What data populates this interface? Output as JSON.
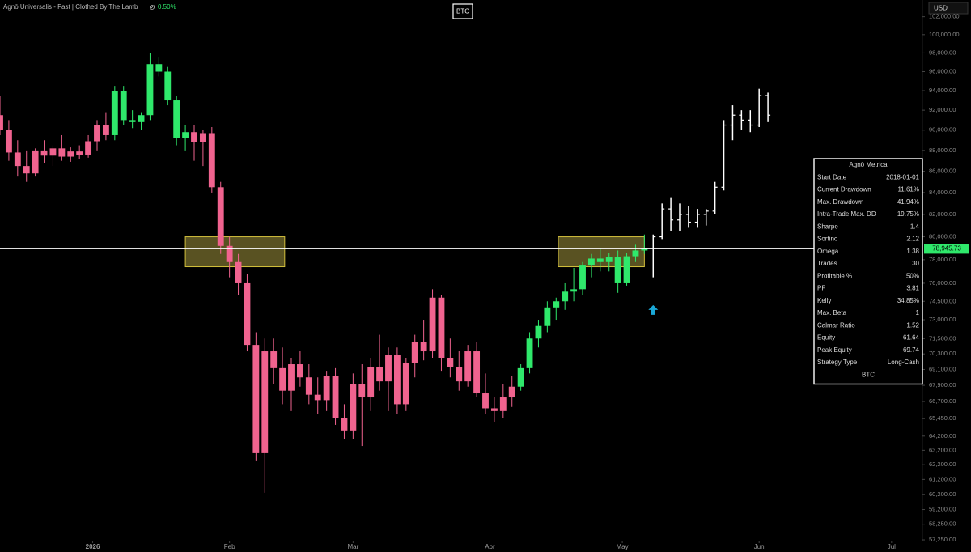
{
  "chart_data": {
    "type": "candlestick",
    "title": "Agnō Universalis - Fast | Clothed By The Lamb",
    "title_change": "0.50%",
    "symbol": "BTC",
    "currency": "USD",
    "log_scale": true,
    "xlim": [
      -21,
      188
    ],
    "xticks": [
      {
        "value": 0,
        "label": "2026"
      },
      {
        "value": 31,
        "label": "Feb"
      },
      {
        "value": 59,
        "label": "Mar"
      },
      {
        "value": 90,
        "label": "Apr"
      },
      {
        "value": 120,
        "label": "May"
      },
      {
        "value": 151,
        "label": "Jun"
      },
      {
        "value": 181,
        "label": "Jul"
      }
    ],
    "ylim": [
      57200,
      103900
    ],
    "yticks": [
      {
        "value": 102000,
        "label": "102,000.00"
      },
      {
        "value": 100000,
        "label": "100,000.00"
      },
      {
        "value": 98000,
        "label": "98,000.00"
      },
      {
        "value": 96000,
        "label": "96,000.00"
      },
      {
        "value": 94000,
        "label": "94,000.00"
      },
      {
        "value": 92000,
        "label": "92,000.00"
      },
      {
        "value": 90000,
        "label": "90,000.00"
      },
      {
        "value": 88000,
        "label": "88,000.00"
      },
      {
        "value": 86000,
        "label": "86,000.00"
      },
      {
        "value": 84000,
        "label": "84,000.00"
      },
      {
        "value": 82000,
        "label": "82,000.00"
      },
      {
        "value": 80000,
        "label": "80,000.00"
      },
      {
        "value": 78000,
        "label": "78,000.00"
      },
      {
        "value": 76000,
        "label": "76,000.00"
      },
      {
        "value": 74500,
        "label": "74,500.00"
      },
      {
        "value": 73000,
        "label": "73,000.00"
      },
      {
        "value": 71500,
        "label": "71,500.00"
      },
      {
        "value": 70300,
        "label": "70,300.00"
      },
      {
        "value": 69100,
        "label": "69,100.00"
      },
      {
        "value": 67900,
        "label": "67,900.00"
      },
      {
        "value": 66700,
        "label": "66,700.00"
      },
      {
        "value": 65450,
        "label": "65,450.00"
      },
      {
        "value": 64200,
        "label": "64,200.00"
      },
      {
        "value": 63200,
        "label": "63,200.00"
      },
      {
        "value": 62200,
        "label": "62,200.00"
      },
      {
        "value": 61200,
        "label": "61,200.00"
      },
      {
        "value": 60200,
        "label": "60,200.00"
      },
      {
        "value": 59200,
        "label": "59,200.00"
      },
      {
        "value": 58250,
        "label": "58,250.00"
      },
      {
        "value": 57250,
        "label": "57,250.00"
      }
    ],
    "last_price": {
      "value": 78945.73,
      "label": "78,945.73"
    },
    "series": [
      {
        "color": "#f0638f",
        "style": "candle",
        "x": [
          -21,
          -19,
          -17,
          -15,
          -13,
          -11,
          -9,
          -7,
          -5,
          -3,
          -1,
          1,
          3
        ],
        "open": [
          91500,
          90000,
          87800,
          86500,
          85800,
          88000,
          87500,
          88200,
          87400,
          87900,
          87600,
          88900,
          90500
        ],
        "high": [
          93500,
          91000,
          89000,
          88000,
          88200,
          89000,
          88500,
          89500,
          88300,
          88500,
          89500,
          91000,
          91800
        ],
        "low": [
          89500,
          87000,
          85500,
          85000,
          85500,
          86800,
          86500,
          87000,
          86900,
          87200,
          87300,
          88000,
          89000
        ],
        "close": [
          90000,
          87800,
          86500,
          85800,
          88000,
          87500,
          88200,
          87400,
          87900,
          87600,
          88900,
          90500,
          89500
        ]
      },
      {
        "color": "#2fe86b",
        "style": "candle",
        "x": [
          5,
          7,
          9,
          11,
          13,
          15,
          17,
          19,
          21
        ],
        "open": [
          89500,
          94000,
          91000,
          90800,
          91500,
          96800,
          96000,
          93000,
          89200
        ],
        "high": [
          94500,
          94500,
          92000,
          91800,
          98000,
          97500,
          96500,
          93500,
          90500
        ],
        "low": [
          89000,
          90500,
          90200,
          90000,
          91000,
          95500,
          92500,
          88500,
          88000
        ],
        "close": [
          94000,
          91000,
          90800,
          91500,
          96800,
          96000,
          93000,
          89200,
          89800
        ]
      },
      {
        "color": "#f0638f",
        "style": "candle",
        "x": [
          23,
          25,
          27,
          29,
          31,
          33,
          35,
          37,
          39,
          41,
          43,
          45,
          47,
          49,
          51,
          53,
          55,
          57,
          59,
          61,
          63,
          65,
          67,
          69,
          71,
          73,
          75,
          77,
          79,
          81,
          83,
          85,
          87,
          89,
          91,
          93,
          95
        ],
        "open": [
          89800,
          88800,
          89700,
          84500,
          79200,
          77800,
          76000,
          71000,
          63000,
          70500,
          69200,
          67500,
          69500,
          68500,
          67200,
          66800,
          68600,
          65500,
          64600,
          68000,
          67000,
          69300,
          68200,
          70200,
          66500,
          69600,
          71200,
          70500,
          74800,
          70000,
          69300,
          68200,
          70500,
          67300,
          66200,
          66000,
          67000
        ],
        "high": [
          90500,
          90000,
          90300,
          85000,
          80000,
          78500,
          76800,
          72000,
          71500,
          71500,
          70800,
          70000,
          70500,
          69500,
          68500,
          69000,
          69200,
          66500,
          68800,
          69500,
          70000,
          71800,
          70800,
          70800,
          70000,
          71800,
          73000,
          75500,
          75000,
          71500,
          70500,
          71000,
          71200,
          68800,
          67000,
          68000,
          68600
        ],
        "low": [
          87000,
          86500,
          84000,
          78500,
          76500,
          75000,
          70500,
          62500,
          60300,
          68000,
          66500,
          66000,
          67800,
          66500,
          65800,
          66000,
          65000,
          64000,
          64000,
          63500,
          66000,
          67500,
          66000,
          65800,
          66000,
          68500,
          69800,
          70000,
          69000,
          68500,
          67500,
          67800,
          67000,
          65800,
          65200,
          65500,
          66300
        ],
        "close": [
          88800,
          89700,
          84500,
          79200,
          77800,
          76000,
          71000,
          63000,
          70500,
          69200,
          67500,
          69500,
          68500,
          67200,
          66800,
          68600,
          65500,
          64600,
          68000,
          67000,
          69300,
          68200,
          70200,
          66500,
          69600,
          71200,
          70500,
          74800,
          70000,
          69300,
          68200,
          70500,
          67300,
          66200,
          66000,
          67000,
          67800
        ]
      },
      {
        "color": "#2fe86b",
        "style": "candle",
        "x": [
          97,
          99,
          101,
          103,
          105,
          107,
          109,
          111,
          113,
          115,
          117,
          119,
          121,
          123,
          125
        ],
        "open": [
          67800,
          69200,
          71500,
          72500,
          74000,
          74500,
          75300,
          75500,
          77500,
          78100,
          77800,
          78200,
          76000,
          78300,
          78800
        ],
        "high": [
          69500,
          72000,
          73000,
          74500,
          74800,
          76000,
          77300,
          77800,
          78500,
          79000,
          78600,
          78800,
          78600,
          79300,
          80200
        ],
        "low": [
          67500,
          68800,
          70800,
          72000,
          73000,
          73800,
          74500,
          75000,
          76500,
          77000,
          77000,
          75200,
          75800,
          77800,
          78500
        ],
        "close": [
          69200,
          71500,
          72500,
          74000,
          74500,
          75300,
          75500,
          77500,
          78100,
          77800,
          78200,
          76000,
          78300,
          78800,
          78950
        ]
      },
      {
        "color": "#ffffff",
        "style": "ohlc",
        "x": [
          127,
          129,
          131,
          133,
          135,
          137,
          139,
          141,
          143,
          145,
          147,
          149,
          151,
          153
        ],
        "open": [
          79000,
          80000,
          82500,
          81500,
          82000,
          81300,
          82000,
          82300,
          84500,
          90500,
          91500,
          91000,
          90500,
          93500
        ],
        "high": [
          80200,
          83000,
          83500,
          83000,
          82800,
          82500,
          82500,
          85000,
          91000,
          92500,
          92000,
          92000,
          94200,
          93800
        ],
        "low": [
          76500,
          79800,
          80500,
          80500,
          80800,
          80800,
          81000,
          82000,
          84200,
          89000,
          90000,
          89800,
          90300,
          90800
        ],
        "close": [
          80000,
          82500,
          81500,
          82000,
          81300,
          82000,
          82300,
          84500,
          90500,
          91500,
          91000,
          90500,
          93500,
          91500
        ]
      }
    ],
    "zones": [
      {
        "x": [
          21,
          43.5
        ],
        "y": [
          77400,
          80000
        ]
      },
      {
        "x": [
          105.5,
          125
        ],
        "y": [
          77400,
          80000
        ]
      }
    ],
    "signal": {
      "x": 127,
      "y": 73800,
      "color": "#1aa7d6"
    },
    "table": {
      "title": "Agnō Metrica",
      "rows": [
        [
          "Start Date",
          "2018-01-01"
        ],
        [
          "Current Drawdown",
          "11.61%"
        ],
        [
          "Max. Drawdown",
          "41.94%"
        ],
        [
          "Intra-Trade Max. DD",
          "19.75%"
        ],
        [
          "Sharpe",
          "1.4"
        ],
        [
          "Sortino",
          "2.12"
        ],
        [
          "Omega",
          "1.38"
        ],
        [
          "Trades",
          "30"
        ],
        [
          "Profitable %",
          "50%"
        ],
        [
          "PF",
          "3.81"
        ],
        [
          "Kelly",
          "34.85%"
        ],
        [
          "Max. Beta",
          "1"
        ],
        [
          "Calmar Ratio",
          "1.52"
        ],
        [
          "Equity",
          "61.64"
        ],
        [
          "Peak Equity",
          "69.74"
        ],
        [
          "Strategy Type",
          "Long-Cash"
        ]
      ],
      "footer": "BTC"
    }
  }
}
